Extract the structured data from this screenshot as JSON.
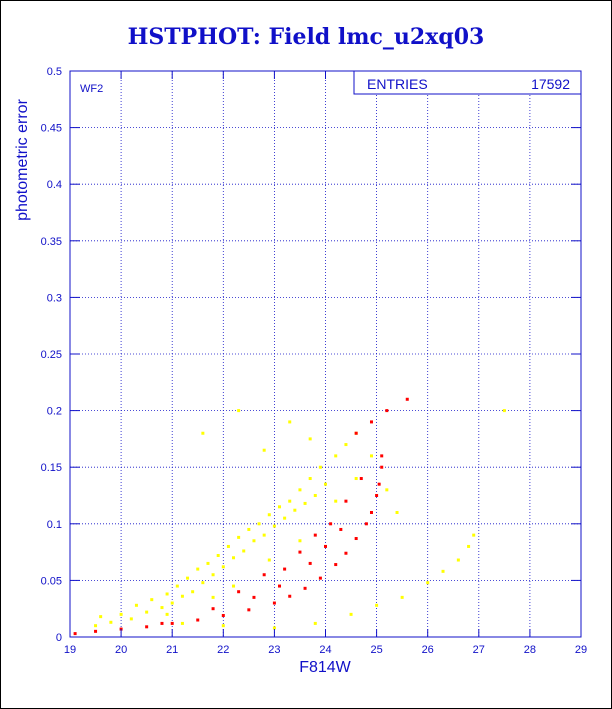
{
  "title": "HSTPHOT: Field lmc_u2xq03",
  "panel_label": "WF2",
  "stats_box": {
    "label": "ENTRIES",
    "value": "17592"
  },
  "colors": {
    "axis": "#1010c8",
    "grid": "#1010c8",
    "series_primary": "#ff0000",
    "series_secondary": "#ffff00"
  },
  "chart_data": {
    "type": "scatter",
    "title": "HSTPHOT: Field lmc_u2xq03",
    "xlabel": "F814W",
    "ylabel": "photometric error",
    "xlim": [
      19,
      29
    ],
    "ylim": [
      0,
      0.5
    ],
    "x_ticks": [
      "19",
      "20",
      "21",
      "22",
      "23",
      "24",
      "25",
      "26",
      "27",
      "28",
      "29"
    ],
    "y_ticks": [
      "0",
      "0.05",
      "0.1",
      "0.15",
      "0.2",
      "0.25",
      "0.3",
      "0.35",
      "0.4",
      "0.45",
      "0.5"
    ],
    "grid": true,
    "series": [
      {
        "color": "#ffff00",
        "points": [
          [
            19.5,
            0.01
          ],
          [
            19.6,
            0.018
          ],
          [
            19.8,
            0.013
          ],
          [
            20.0,
            0.02
          ],
          [
            20.2,
            0.016
          ],
          [
            20.3,
            0.028
          ],
          [
            20.5,
            0.022
          ],
          [
            20.6,
            0.033
          ],
          [
            20.8,
            0.026
          ],
          [
            20.9,
            0.038
          ],
          [
            21.0,
            0.03
          ],
          [
            21.1,
            0.045
          ],
          [
            21.2,
            0.036
          ],
          [
            21.3,
            0.052
          ],
          [
            21.4,
            0.04
          ],
          [
            21.5,
            0.06
          ],
          [
            21.6,
            0.048
          ],
          [
            21.7,
            0.065
          ],
          [
            21.8,
            0.055
          ],
          [
            21.9,
            0.072
          ],
          [
            22.0,
            0.062
          ],
          [
            22.1,
            0.08
          ],
          [
            22.2,
            0.07
          ],
          [
            22.3,
            0.088
          ],
          [
            22.4,
            0.076
          ],
          [
            22.5,
            0.095
          ],
          [
            22.6,
            0.085
          ],
          [
            22.7,
            0.1
          ],
          [
            22.8,
            0.09
          ],
          [
            22.9,
            0.108
          ],
          [
            23.0,
            0.098
          ],
          [
            23.1,
            0.115
          ],
          [
            23.2,
            0.105
          ],
          [
            23.3,
            0.12
          ],
          [
            23.4,
            0.112
          ],
          [
            23.5,
            0.13
          ],
          [
            23.6,
            0.118
          ],
          [
            23.7,
            0.14
          ],
          [
            23.8,
            0.125
          ],
          [
            23.9,
            0.15
          ],
          [
            24.0,
            0.135
          ],
          [
            24.2,
            0.16
          ],
          [
            24.4,
            0.17
          ],
          [
            24.6,
            0.18
          ],
          [
            21.6,
            0.18
          ],
          [
            22.3,
            0.2
          ],
          [
            22.8,
            0.165
          ],
          [
            23.3,
            0.19
          ],
          [
            23.7,
            0.175
          ],
          [
            24.2,
            0.12
          ],
          [
            24.6,
            0.14
          ],
          [
            24.9,
            0.16
          ],
          [
            23.5,
            0.085
          ],
          [
            22.9,
            0.068
          ],
          [
            22.2,
            0.045
          ],
          [
            21.8,
            0.035
          ],
          [
            20.9,
            0.02
          ],
          [
            21.2,
            0.012
          ],
          [
            22.0,
            0.01
          ],
          [
            23.0,
            0.008
          ],
          [
            23.8,
            0.012
          ],
          [
            24.5,
            0.02
          ],
          [
            25.0,
            0.028
          ],
          [
            25.5,
            0.035
          ],
          [
            26.0,
            0.048
          ],
          [
            26.3,
            0.058
          ],
          [
            26.6,
            0.068
          ],
          [
            26.8,
            0.08
          ],
          [
            26.9,
            0.09
          ],
          [
            27.5,
            0.2
          ],
          [
            25.2,
            0.13
          ],
          [
            25.4,
            0.11
          ]
        ]
      },
      {
        "color": "#ff0000",
        "points": [
          [
            19.1,
            0.003
          ],
          [
            19.5,
            0.005
          ],
          [
            20.0,
            0.007
          ],
          [
            20.5,
            0.009
          ],
          [
            21.0,
            0.012
          ],
          [
            21.5,
            0.015
          ],
          [
            22.0,
            0.019
          ],
          [
            22.5,
            0.024
          ],
          [
            23.0,
            0.03
          ],
          [
            23.3,
            0.036
          ],
          [
            23.6,
            0.043
          ],
          [
            23.9,
            0.052
          ],
          [
            24.2,
            0.064
          ],
          [
            24.4,
            0.074
          ],
          [
            24.6,
            0.087
          ],
          [
            24.8,
            0.1
          ],
          [
            24.9,
            0.11
          ],
          [
            25.0,
            0.125
          ],
          [
            25.05,
            0.135
          ],
          [
            25.1,
            0.15
          ],
          [
            25.1,
            0.16
          ],
          [
            22.3,
            0.04
          ],
          [
            22.8,
            0.055
          ],
          [
            23.2,
            0.06
          ],
          [
            23.5,
            0.075
          ],
          [
            23.8,
            0.09
          ],
          [
            24.1,
            0.1
          ],
          [
            24.4,
            0.12
          ],
          [
            24.7,
            0.14
          ],
          [
            25.2,
            0.2
          ],
          [
            25.6,
            0.21
          ],
          [
            24.6,
            0.18
          ],
          [
            21.8,
            0.025
          ],
          [
            22.6,
            0.035
          ],
          [
            23.1,
            0.045
          ],
          [
            23.7,
            0.065
          ],
          [
            24.0,
            0.08
          ],
          [
            24.3,
            0.095
          ],
          [
            24.9,
            0.19
          ],
          [
            20.8,
            0.012
          ]
        ]
      }
    ]
  }
}
